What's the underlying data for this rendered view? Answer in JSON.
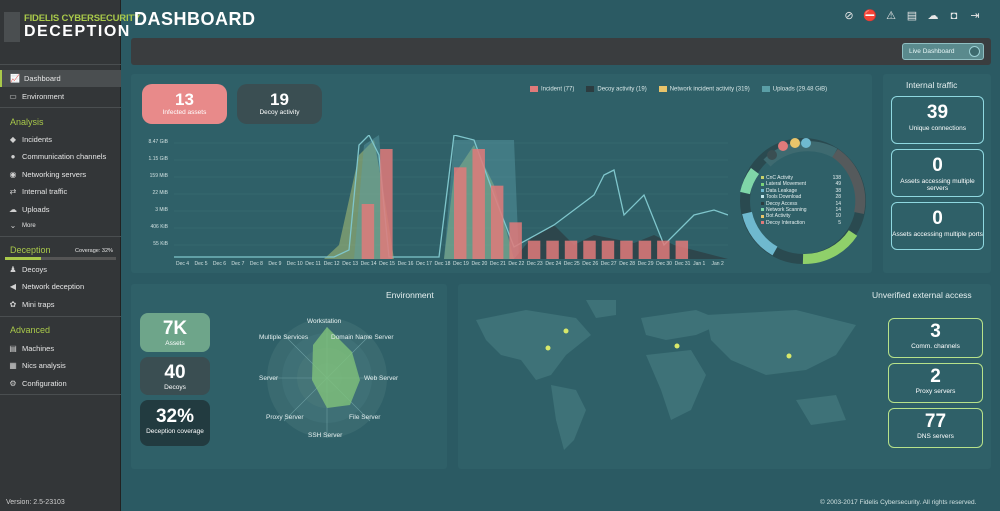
{
  "sidebar": {
    "logo_line1": "FIDELIS CYBERSECURITY",
    "logo_line2": "DECEPTION",
    "items_top": [
      {
        "label": "Dashboard",
        "icon": "chart-icon"
      },
      {
        "label": "Environment",
        "icon": "monitor-icon"
      }
    ],
    "analysis_title": "Analysis",
    "analysis_items": [
      {
        "label": "Incidents",
        "icon": "diamond-icon"
      },
      {
        "label": "Communication channels",
        "icon": "chat-icon"
      },
      {
        "label": "Networking servers",
        "icon": "globe-icon"
      },
      {
        "label": "Internal traffic",
        "icon": "traffic-icon"
      },
      {
        "label": "Uploads",
        "icon": "cloud-upload-icon"
      },
      {
        "label": "More",
        "icon": "chevron-down-icon"
      }
    ],
    "deception_title": "Deception",
    "coverage_label": "Coverage: 32%",
    "coverage_value": 0.32,
    "deception_items": [
      {
        "label": "Decoys",
        "icon": "decoy-icon"
      },
      {
        "label": "Network deception",
        "icon": "megaphone-icon"
      },
      {
        "label": "Mini traps",
        "icon": "paw-icon"
      }
    ],
    "advanced_title": "Advanced",
    "advanced_items": [
      {
        "label": "Machines",
        "icon": "server-icon"
      },
      {
        "label": "Nics analysis",
        "icon": "nic-icon"
      },
      {
        "label": "Configuration",
        "icon": "gear-icon"
      }
    ],
    "version": "Version: 2.5-23103"
  },
  "header": {
    "title": "DASHBOARD",
    "live_button": "Live Dashboard"
  },
  "summary": {
    "infected": {
      "value": "13",
      "label": "Infected assets"
    },
    "decoy_activity": {
      "value": "19",
      "label": "Decoy activity"
    },
    "legend": [
      {
        "label": "Incident (77)",
        "color": "#e07a7a"
      },
      {
        "label": "Decoy activity (19)",
        "color": "#2c3c40"
      },
      {
        "label": "Network incident activity (319)",
        "color": "#e8c46a"
      },
      {
        "label": "Uploads (29.48 GiB)",
        "color": "#5a9ea6"
      }
    ]
  },
  "chart_data": {
    "type": "bar",
    "y_ticks": [
      "8.47 GiB",
      "1.15 GiB",
      "159 MiB",
      "22 MiB",
      "3 MiB",
      "406 KiB",
      "55 KiB"
    ],
    "categories": [
      "Dec 4",
      "Dec 5",
      "Dec 6",
      "Dec 7",
      "Dec 8",
      "Dec 9",
      "Dec 10",
      "Dec 11",
      "Dec 12",
      "Dec 13",
      "Dec 14",
      "Dec 15",
      "Dec 16",
      "Dec 17",
      "Dec 18",
      "Dec 19",
      "Dec 20",
      "Dec 21",
      "Dec 22",
      "Dec 23",
      "Dec 24",
      "Dec 25",
      "Dec 26",
      "Dec 27",
      "Dec 28",
      "Dec 29",
      "Dec 30",
      "Dec 31",
      "Jan 1",
      "Jan 2"
    ],
    "series": [
      {
        "name": "Incident",
        "values": [
          0,
          0,
          0,
          0,
          0,
          0,
          0,
          0,
          0,
          0,
          3,
          6,
          0,
          0,
          0,
          5,
          6,
          4,
          2,
          1,
          1,
          1,
          1,
          1,
          1,
          1,
          1,
          1,
          0,
          0
        ]
      }
    ]
  },
  "donut": {
    "rows": [
      {
        "label": "CnC Activity",
        "value": "138",
        "color": "#c7d06a"
      },
      {
        "label": "Lateral Movement",
        "value": "49",
        "color": "#7ad27a"
      },
      {
        "label": "Data Leakage",
        "value": "38",
        "color": "#6fb9cf"
      },
      {
        "label": "Tools Download",
        "value": "28",
        "color": "#bfe3e8"
      },
      {
        "label": "Decoy Access",
        "value": "14",
        "color": "#2c3c40"
      },
      {
        "label": "Network Scanning",
        "value": "14",
        "color": "#7fd6a8"
      },
      {
        "label": "Bot Activity",
        "value": "10",
        "color": "#e8c46a"
      },
      {
        "label": "Decoy Interaction",
        "value": "5",
        "color": "#e07a7a"
      }
    ]
  },
  "internal_traffic": {
    "title": "Internal traffic",
    "cards": [
      {
        "value": "39",
        "label": "Unique connections"
      },
      {
        "value": "0",
        "label": "Assets accessing multiple servers"
      },
      {
        "value": "0",
        "label": "Assets accessing multiple ports"
      }
    ]
  },
  "environment": {
    "title": "Environment",
    "cards": [
      {
        "value": "7K",
        "label": "Assets",
        "color": "#6ea58a"
      },
      {
        "value": "40",
        "label": "Decoys",
        "color": "#3a4e52"
      },
      {
        "value": "32%",
        "label": "Deception coverage",
        "color": "#223b40"
      }
    ],
    "radar_labels": [
      "Workstation",
      "Domain Name Server",
      "Web Server",
      "File Server",
      "SSH Server",
      "Proxy Server",
      "Server",
      "Multiple Services"
    ]
  },
  "external": {
    "title": "Unverified external access",
    "cards": [
      {
        "value": "3",
        "label": "Comm. channels"
      },
      {
        "value": "2",
        "label": "Proxy servers"
      },
      {
        "value": "77",
        "label": "DNS servers"
      }
    ]
  },
  "footer": "© 2003-2017 Fidelis Cybersecurity. All rights reserved."
}
